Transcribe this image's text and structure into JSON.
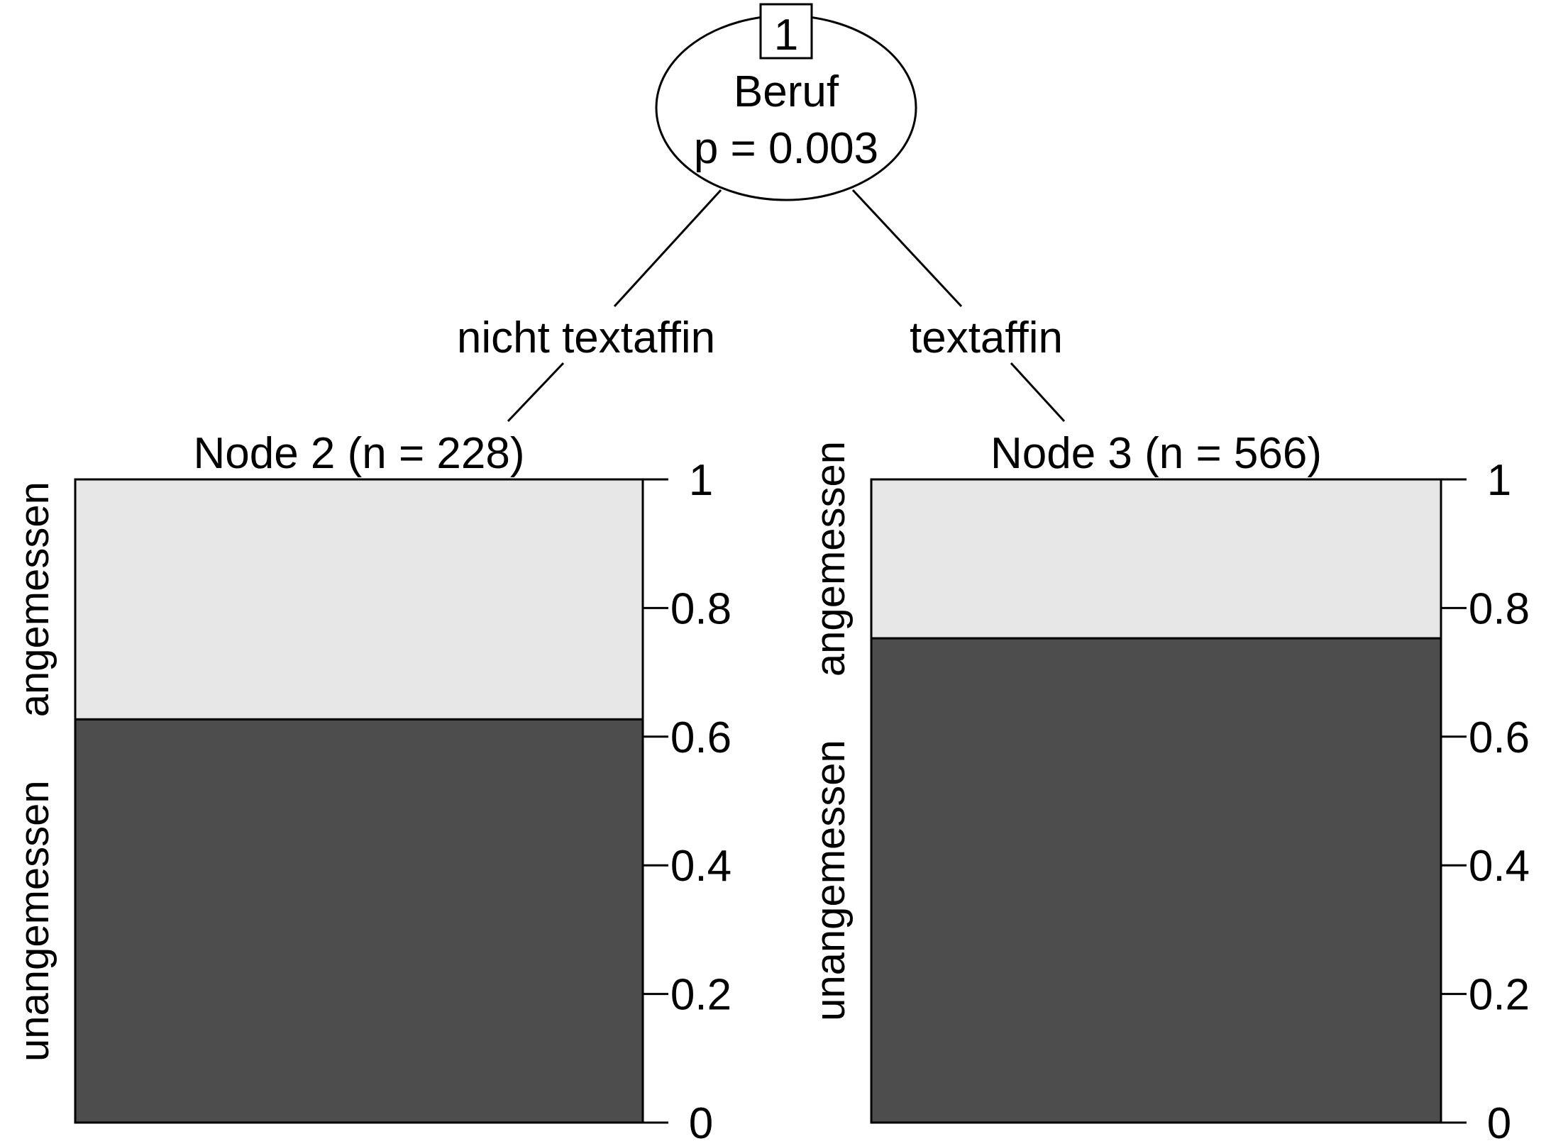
{
  "tree": {
    "root": {
      "id_label": "1",
      "variable": "Beruf",
      "pvalue_label": "p = 0.003"
    },
    "edges": [
      {
        "label": "nicht textaffin"
      },
      {
        "label": "textaffin"
      }
    ]
  },
  "chart_data": {
    "type": "bar",
    "stacked": true,
    "panels": [
      {
        "title": "Node 2 (n = 228)",
        "categories_bottom_to_top": [
          "unangemessen",
          "angemessen"
        ],
        "values": {
          "unangemessen": 0.627,
          "angemessen": 0.373
        }
      },
      {
        "title": "Node 3 (n = 566)",
        "categories_bottom_to_top": [
          "unangemessen",
          "angemessen"
        ],
        "values": {
          "unangemessen": 0.753,
          "angemessen": 0.247
        }
      }
    ],
    "ylim": [
      0,
      1
    ],
    "yticks": [
      0,
      0.2,
      0.4,
      0.6,
      0.8,
      1
    ],
    "ytick_labels": [
      "0",
      "0.2",
      "0.4",
      "0.6",
      "0.8",
      "1"
    ],
    "colors": {
      "unangemessen": "#4d4d4d",
      "angemessen": "#e6e6e6"
    },
    "grid": false
  }
}
